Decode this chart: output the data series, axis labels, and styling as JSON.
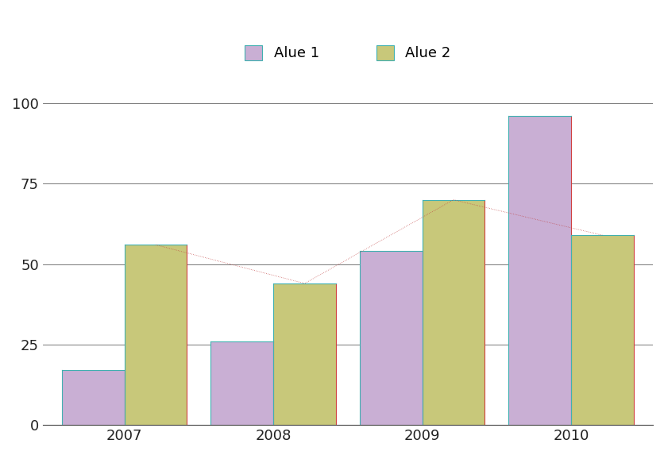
{
  "years": [
    2007,
    2008,
    2009,
    2010
  ],
  "alue1": [
    17,
    26,
    54,
    96
  ],
  "alue2": [
    56,
    44,
    70,
    59
  ],
  "alue1_color": "#c9afd4",
  "alue2_color": "#c8c87a",
  "bar_left_edge_color": "#40b0b0",
  "bar_right_edge_color": "#d04040",
  "line2_color": "#c04040",
  "legend_labels": [
    "Alue 1",
    "Alue 2"
  ],
  "ylim": [
    0,
    108
  ],
  "yticks": [
    0,
    25,
    50,
    75,
    100
  ],
  "bar_width": 0.42,
  "background_color": "#ffffff",
  "grid_color": "#606060",
  "grid_linewidth": 0.6
}
